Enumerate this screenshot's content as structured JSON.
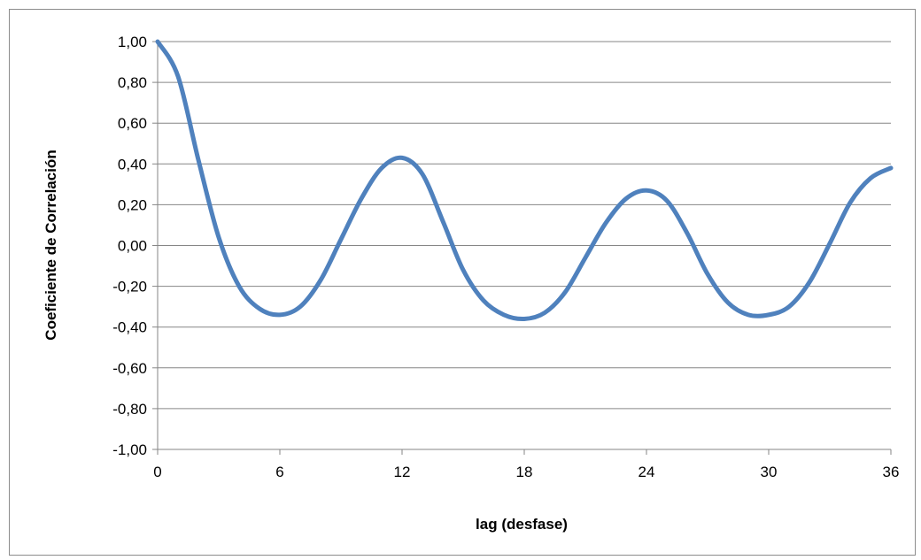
{
  "chart_data": {
    "type": "line",
    "title": "",
    "xlabel": "lag (desfase)",
    "ylabel": "Coeficiente de Correlación",
    "xlim": [
      0,
      36
    ],
    "ylim": [
      -1,
      1
    ],
    "x_ticks": [
      0,
      6,
      12,
      18,
      24,
      30,
      36
    ],
    "x_tick_labels": [
      "0",
      "6",
      "12",
      "18",
      "24",
      "30",
      "36"
    ],
    "y_ticks": [
      1,
      0.8,
      0.6,
      0.4,
      0.2,
      0,
      -0.2,
      -0.4,
      -0.6,
      -0.8,
      -1
    ],
    "y_tick_labels": [
      "1,00",
      "0,80",
      "0,60",
      "0,40",
      "0,20",
      "0,00",
      "-0,20",
      "-0,40",
      "-0,60",
      "-0,80",
      "-1,00"
    ],
    "grid": "horizontal",
    "legend": "none",
    "series_color": "#4f81bd",
    "series": [
      {
        "x": [
          0,
          1,
          2,
          3,
          4,
          5,
          6,
          7,
          8,
          9,
          10,
          11,
          12,
          13,
          14,
          15,
          16,
          17,
          18,
          19,
          20,
          21,
          22,
          23,
          24,
          25,
          26,
          27,
          28,
          29,
          30,
          31,
          32,
          33,
          34,
          35,
          36
        ],
        "values": [
          1.0,
          0.83,
          0.42,
          0.04,
          -0.2,
          -0.31,
          -0.34,
          -0.3,
          -0.17,
          0.03,
          0.23,
          0.38,
          0.43,
          0.35,
          0.12,
          -0.12,
          -0.27,
          -0.34,
          -0.36,
          -0.33,
          -0.23,
          -0.06,
          0.11,
          0.23,
          0.27,
          0.22,
          0.06,
          -0.14,
          -0.28,
          -0.34,
          -0.34,
          -0.3,
          -0.18,
          0.01,
          0.21,
          0.33,
          0.38
        ]
      }
    ]
  }
}
